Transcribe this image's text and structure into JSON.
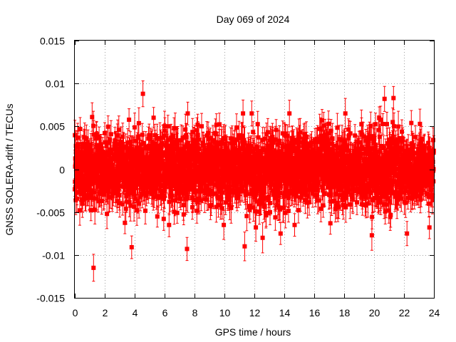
{
  "chart_data": {
    "type": "scatter",
    "title": "Day 069 of 2024",
    "xlabel": "GPS time / hours",
    "ylabel": "GNSS SOLERA-drift / TECUs",
    "xlim": [
      0,
      24
    ],
    "ylim": [
      -0.015,
      0.015
    ],
    "grid": true,
    "xticks": [
      0,
      2,
      4,
      6,
      8,
      10,
      12,
      14,
      16,
      18,
      20,
      22,
      24
    ],
    "xtick_labels": [
      "0",
      "2",
      "4",
      "6",
      "8",
      "10",
      "12",
      "14",
      "16",
      "18",
      "20",
      "22",
      "24"
    ],
    "yticks": [
      -0.015,
      -0.01,
      -0.005,
      0,
      0.005,
      0.01,
      0.015
    ],
    "ytick_labels": [
      "-0.015",
      "-0.01",
      "-0.005",
      "0",
      "0.005",
      "0.01",
      "0.015"
    ],
    "series": [
      {
        "name": "SOLERA drift",
        "color": "#ff0000",
        "marker": "square",
        "error_bars": true,
        "approx_error": 0.0015,
        "point_count": 2880,
        "interval_hours": 0.008333,
        "envelope_std": 0.0021,
        "notable_points": [
          {
            "x": 1.25,
            "y": -0.0115
          },
          {
            "x": 3.8,
            "y": -0.0091
          },
          {
            "x": 4.55,
            "y": 0.0088
          },
          {
            "x": 7.5,
            "y": -0.0093
          },
          {
            "x": 11.35,
            "y": -0.009
          },
          {
            "x": 12.1,
            "y": -0.0068
          },
          {
            "x": 12.55,
            "y": -0.008
          },
          {
            "x": 13.75,
            "y": -0.0075
          },
          {
            "x": 19.85,
            "y": -0.0077
          },
          {
            "x": 21.3,
            "y": 0.0083
          },
          {
            "x": 20.7,
            "y": 0.0082
          },
          {
            "x": 22.2,
            "y": -0.0075
          },
          {
            "x": 23.7,
            "y": -0.0068
          }
        ]
      }
    ]
  }
}
